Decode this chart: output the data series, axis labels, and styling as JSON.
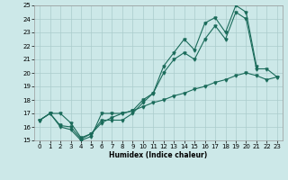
{
  "xlabel": "Humidex (Indice chaleur)",
  "xlim": [
    -0.5,
    23.5
  ],
  "ylim": [
    15,
    25
  ],
  "xticks": [
    0,
    1,
    2,
    3,
    4,
    5,
    6,
    7,
    8,
    9,
    10,
    11,
    12,
    13,
    14,
    15,
    16,
    17,
    18,
    19,
    20,
    21,
    22,
    23
  ],
  "yticks": [
    15,
    16,
    17,
    18,
    19,
    20,
    21,
    22,
    23,
    24,
    25
  ],
  "background_color": "#cce8e8",
  "grid_color": "#aacccc",
  "line_color": "#1a6b5a",
  "line1_x": [
    0,
    1,
    2,
    3,
    4,
    5,
    6,
    7,
    8,
    9,
    10,
    11,
    12,
    13,
    14,
    15,
    16,
    17,
    18,
    19,
    20,
    21
  ],
  "line1_y": [
    16.5,
    17.0,
    16.0,
    15.8,
    15.0,
    15.3,
    17.0,
    17.0,
    17.0,
    17.2,
    18.0,
    18.5,
    20.5,
    21.5,
    22.5,
    21.7,
    23.7,
    24.1,
    23.0,
    25.0,
    24.5,
    20.5
  ],
  "line2_x": [
    0,
    1,
    2,
    3,
    4,
    5,
    6,
    7,
    8,
    9,
    10,
    11,
    12,
    13,
    14,
    15,
    16,
    17,
    18,
    19,
    20,
    21,
    22,
    23
  ],
  "line2_y": [
    16.5,
    17.0,
    16.1,
    16.0,
    15.1,
    15.5,
    16.5,
    16.5,
    16.5,
    17.0,
    17.8,
    18.5,
    20.0,
    21.0,
    21.5,
    21.0,
    22.5,
    23.5,
    22.5,
    24.5,
    24.0,
    20.3,
    20.3,
    19.7
  ],
  "line3_x": [
    0,
    1,
    2,
    3,
    4,
    5,
    6,
    7,
    8,
    9,
    10,
    11,
    12,
    13,
    14,
    15,
    16,
    17,
    18,
    19,
    20,
    21,
    22,
    23
  ],
  "line3_y": [
    16.5,
    17.0,
    17.0,
    16.3,
    15.2,
    15.5,
    16.3,
    16.7,
    17.0,
    17.2,
    17.5,
    17.8,
    18.0,
    18.3,
    18.5,
    18.8,
    19.0,
    19.3,
    19.5,
    19.8,
    20.0,
    19.8,
    19.5,
    19.7
  ]
}
